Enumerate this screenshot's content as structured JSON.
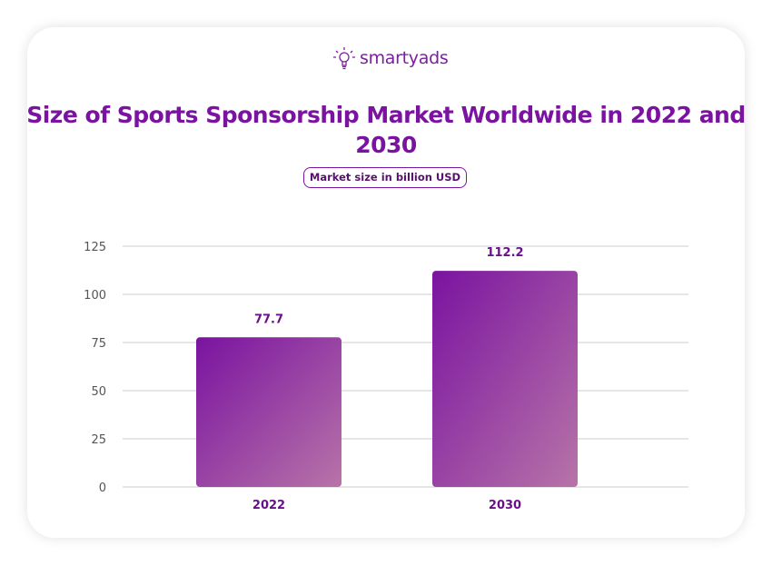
{
  "brand": {
    "name": "smartyads",
    "accent": "#7a13a0"
  },
  "chart_data": {
    "type": "bar",
    "title": "Size of Sports Sponsorship Market Worldwide in 2022 and 2030",
    "subtitle": "Market size in billion USD",
    "categories": [
      "2022",
      "2030"
    ],
    "values": [
      77.7,
      112.2
    ],
    "data_labels": [
      "77.7",
      "112.2"
    ],
    "ylim": [
      0,
      125
    ],
    "yticks": [
      0,
      25,
      50,
      75,
      100,
      125
    ],
    "grid": true,
    "bar_gradient": [
      "#7a13a0",
      "#b774a8"
    ]
  }
}
